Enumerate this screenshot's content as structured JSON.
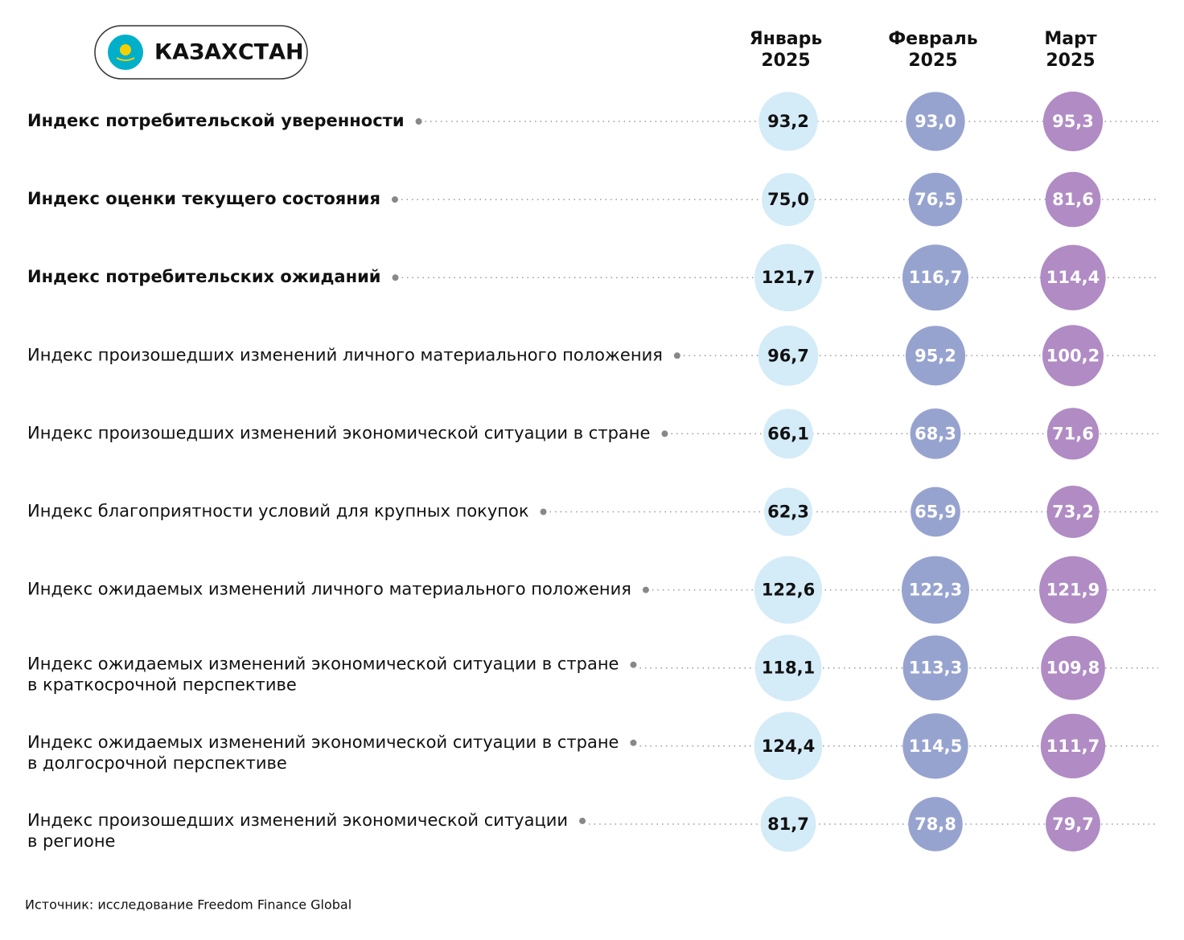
{
  "header": {
    "country": "КАЗАХСТАН",
    "columns": [
      {
        "month": "Январь",
        "year": "2025",
        "color": "#d4ebf8",
        "text_color": "#111111"
      },
      {
        "month": "Февраль",
        "year": "2025",
        "color": "#97a3cf",
        "text_color": "#ffffff"
      },
      {
        "month": "Март",
        "year": "2025",
        "color": "#b08bc4",
        "text_color": "#ffffff"
      }
    ]
  },
  "rows": [
    {
      "label": [
        "Индекс потребительской уверенности"
      ],
      "bold": true,
      "values": [
        93.2,
        93.0,
        95.3
      ],
      "value_labels": [
        "93,2",
        "93,0",
        "95,3"
      ]
    },
    {
      "label": [
        "Индекс оценки текущего состояния"
      ],
      "bold": true,
      "values": [
        75.0,
        76.5,
        81.6
      ],
      "value_labels": [
        "75,0",
        "76,5",
        "81,6"
      ]
    },
    {
      "label": [
        "Индекс потребительских ожиданий"
      ],
      "bold": true,
      "values": [
        121.7,
        116.7,
        114.4
      ],
      "value_labels": [
        "121,7",
        "116,7",
        "114,4"
      ]
    },
    {
      "label": [
        "Индекс произошедших изменений личного материального положения"
      ],
      "bold": false,
      "values": [
        96.7,
        95.2,
        100.2
      ],
      "value_labels": [
        "96,7",
        "95,2",
        "100,2"
      ]
    },
    {
      "label": [
        "Индекс произошедших изменений экономической ситуации в стране"
      ],
      "bold": false,
      "values": [
        66.1,
        68.3,
        71.6
      ],
      "value_labels": [
        "66,1",
        "68,3",
        "71,6"
      ]
    },
    {
      "label": [
        "Индекс благоприятности условий для крупных покупок"
      ],
      "bold": false,
      "values": [
        62.3,
        65.9,
        73.2
      ],
      "value_labels": [
        "62,3",
        "65,9",
        "73,2"
      ]
    },
    {
      "label": [
        "Индекс ожидаемых изменений личного материального положения"
      ],
      "bold": false,
      "values": [
        122.6,
        122.3,
        121.9
      ],
      "value_labels": [
        "122,6",
        "122,3",
        "121,9"
      ]
    },
    {
      "label": [
        "Индекс ожидаемых изменений экономической ситуации в стране",
        "в краткосрочной перспективе"
      ],
      "bold": false,
      "values": [
        118.1,
        113.3,
        109.8
      ],
      "value_labels": [
        "118,1",
        "113,3",
        "109,8"
      ]
    },
    {
      "label": [
        "Индекс ожидаемых изменений экономической ситуации в стране",
        "в долгосрочной перспективе"
      ],
      "bold": false,
      "values": [
        124.4,
        114.5,
        111.7
      ],
      "value_labels": [
        "124,4",
        "114,5",
        "111,7"
      ]
    },
    {
      "label": [
        "Индекс произошедших изменений экономической ситуации",
        "в регионе"
      ],
      "bold": false,
      "values": [
        81.7,
        78.8,
        79.7
      ],
      "value_labels": [
        "81,7",
        "78,8",
        "79,7"
      ]
    }
  ],
  "source": "Источник: исследование Freedom Finance Global"
}
